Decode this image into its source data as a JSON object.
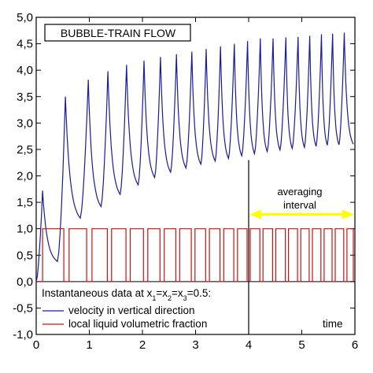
{
  "chart_data": {
    "type": "line",
    "title": "BUBBLE-TRAIN FLOW",
    "xlabel": "time",
    "ylabel": "",
    "xlim": [
      0,
      6
    ],
    "ylim": [
      -1.0,
      5.0
    ],
    "xticks": [
      0,
      1,
      2,
      3,
      4,
      5,
      6
    ],
    "xtick_labels": [
      "0",
      "1",
      "2",
      "3",
      "4",
      "5",
      "6"
    ],
    "yticks": [
      -1.0,
      -0.5,
      0.0,
      0.5,
      1.0,
      1.5,
      2.0,
      2.5,
      3.0,
      3.5,
      4.0,
      4.5,
      5.0
    ],
    "ytick_labels": [
      "-1,0",
      "-0,5",
      "0,0",
      "0,5",
      "1,0",
      "1,5",
      "2,0",
      "2,5",
      "3,0",
      "3,5",
      "4,0",
      "4,5",
      "5,0"
    ],
    "grid": false,
    "legend": {
      "placement": "bottom-left",
      "heading_prefix": "Instantaneous data at x",
      "heading_sub": "1",
      "heading_mid1": "=x",
      "heading_sub2": "2",
      "heading_mid2": "=x",
      "heading_sub3": "3",
      "heading_suffix": "=0.5:"
    },
    "series": [
      {
        "name": "velocity in vertical direction",
        "color": "#1a1aa0",
        "peaks": [
          [
            0.12,
            1.72
          ],
          [
            0.55,
            3.5
          ],
          [
            0.98,
            3.82
          ],
          [
            1.35,
            3.98
          ],
          [
            1.7,
            4.1
          ],
          [
            2.03,
            4.18
          ],
          [
            2.34,
            4.25
          ],
          [
            2.64,
            4.3
          ],
          [
            2.93,
            4.35
          ],
          [
            3.2,
            4.4
          ],
          [
            3.47,
            4.45
          ],
          [
            3.73,
            4.5
          ],
          [
            3.98,
            4.55
          ],
          [
            4.22,
            4.6
          ],
          [
            4.46,
            4.6
          ],
          [
            4.7,
            4.62
          ],
          [
            4.93,
            4.63
          ],
          [
            5.15,
            4.65
          ],
          [
            5.37,
            4.68
          ],
          [
            5.58,
            4.69
          ],
          [
            5.8,
            4.71
          ]
        ],
        "troughs": [
          [
            0.0,
            0.0
          ],
          [
            0.4,
            0.38
          ],
          [
            0.83,
            1.2
          ],
          [
            1.22,
            1.42
          ],
          [
            1.58,
            1.65
          ],
          [
            1.92,
            1.83
          ],
          [
            2.23,
            1.97
          ],
          [
            2.53,
            2.07
          ],
          [
            2.82,
            2.15
          ],
          [
            3.1,
            2.22
          ],
          [
            3.37,
            2.28
          ],
          [
            3.62,
            2.33
          ],
          [
            3.87,
            2.38
          ],
          [
            4.11,
            2.42
          ],
          [
            4.35,
            2.46
          ],
          [
            4.59,
            2.49
          ],
          [
            4.82,
            2.52
          ],
          [
            5.05,
            2.54
          ],
          [
            5.27,
            2.56
          ],
          [
            5.48,
            2.58
          ],
          [
            5.7,
            2.59
          ]
        ],
        "end": [
          5.97,
          2.6
        ]
      },
      {
        "name": "local liquid volumetric fraction",
        "color": "#cc1111",
        "pulses_high": [
          [
            0.12,
            0.52
          ],
          [
            0.62,
            0.95
          ],
          [
            1.05,
            1.34
          ],
          [
            1.42,
            1.69
          ],
          [
            1.77,
            2.02
          ],
          [
            2.1,
            2.33
          ],
          [
            2.41,
            2.63
          ],
          [
            2.7,
            2.92
          ],
          [
            2.99,
            3.19
          ],
          [
            3.26,
            3.46
          ],
          [
            3.53,
            3.72
          ],
          [
            3.79,
            3.97
          ],
          [
            4.03,
            4.21
          ],
          [
            4.27,
            4.45
          ],
          [
            4.51,
            4.69
          ],
          [
            4.75,
            4.92
          ],
          [
            4.98,
            5.14
          ],
          [
            5.2,
            5.36
          ],
          [
            5.42,
            5.57
          ],
          [
            5.63,
            5.79
          ],
          [
            5.85,
            5.97
          ]
        ],
        "high": 1.0,
        "low": 0.0
      }
    ],
    "annotations": {
      "averaging_label_1": "averaging",
      "averaging_label_2": "interval",
      "averaging_start": 4.0,
      "averaging_end": 6.0,
      "arrow_y": 1.27,
      "arrow_color": "#ffff00"
    }
  }
}
